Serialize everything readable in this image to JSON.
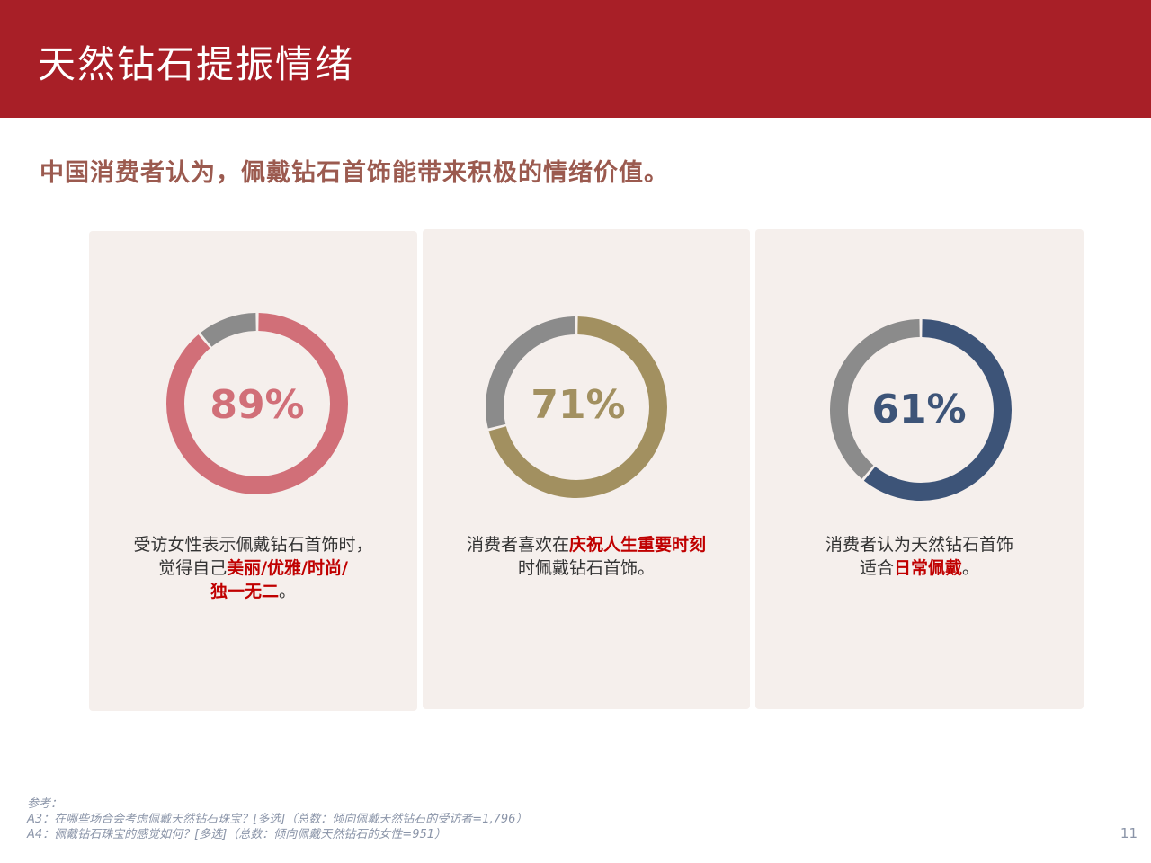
{
  "header": {
    "title": "天然钻石提振情绪"
  },
  "subtitle": "中国消费者认为，佩戴钻石首饰能带来积极的情绪价值。",
  "chart_data": [
    {
      "type": "pie",
      "label": "89%",
      "value": 89,
      "colors": {
        "value": "#d16f78",
        "remainder": "#8b8b8b"
      },
      "caption": {
        "line1": "受访女性表示佩戴钻石首饰时，",
        "line2_pre": "觉得自己",
        "line2_hl": "美丽/优雅/时尚/",
        "line3_hl": "独一无二",
        "line3_post": "。"
      }
    },
    {
      "type": "pie",
      "label": "71%",
      "value": 71,
      "colors": {
        "value": "#a29060",
        "remainder": "#8b8b8b"
      },
      "caption": {
        "line1_pre": "消费者喜欢在",
        "line1_hl": "庆祝人生重要时刻",
        "line2": "时佩戴钻石首饰。"
      }
    },
    {
      "type": "pie",
      "label": "61%",
      "value": 61,
      "colors": {
        "value": "#3d5478",
        "remainder": "#8b8b8b"
      },
      "caption": {
        "line1": "消费者认为天然钻石首饰",
        "line2_pre": "适合",
        "line2_hl": "日常佩戴",
        "line2_post": "。"
      }
    }
  ],
  "footnote": {
    "line1": "参考：",
    "line2": "A3：在哪些场合会考虑佩戴天然钻石珠宝？[多选]（总数：倾向佩戴天然钻石的受访者=1,796）",
    "line3": "A4：佩戴钻石珠宝的感觉如何？[多选]（总数：倾向佩戴天然钻石的女性=951）"
  },
  "page_number": "11"
}
